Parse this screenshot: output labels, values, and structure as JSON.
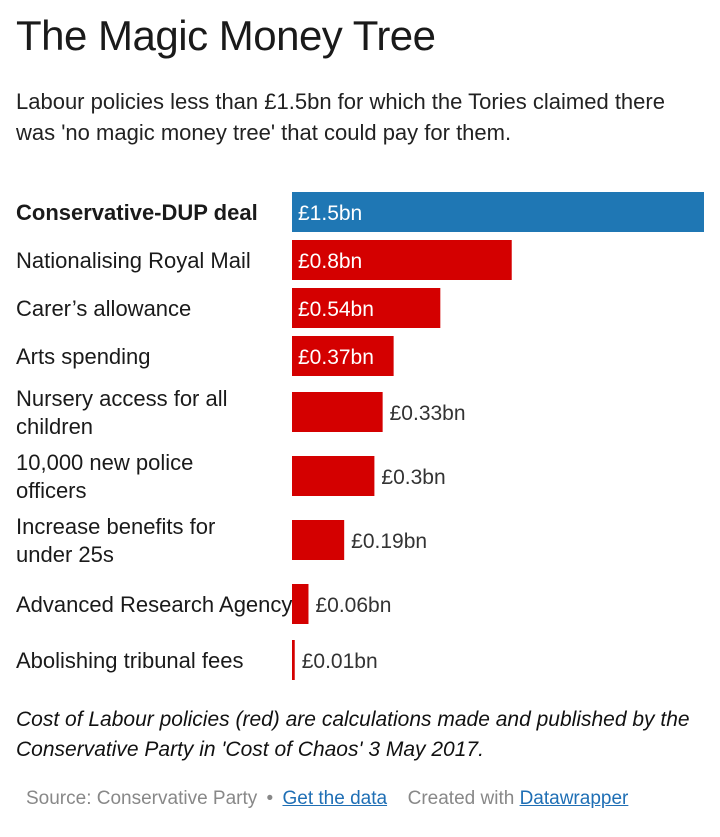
{
  "header": {
    "title": "The Magic Money Tree",
    "subtitle": "Labour policies less than £1.5bn for which the Tories claimed there was 'no magic money tree' that could pay for them."
  },
  "chart_data": {
    "type": "bar",
    "orientation": "horizontal",
    "title": "The Magic Money Tree",
    "categories": [
      "Conservative-DUP deal",
      "Nationalising Royal Mail",
      "Carer’s allowance",
      "Arts spending",
      "Nursery access for all children",
      "10,000 new police officers",
      "Increase benefits for under 25s",
      "Advanced Research Agency",
      "Abolishing tribunal fees"
    ],
    "values": [
      1.5,
      0.8,
      0.54,
      0.37,
      0.33,
      0.3,
      0.19,
      0.06,
      0.01
    ],
    "value_labels": [
      "£1.5bn",
      "£0.8bn",
      "£0.54bn",
      "£0.37bn",
      "£0.33bn",
      "£0.3bn",
      "£0.19bn",
      "£0.06bn",
      "£0.01bn"
    ],
    "highlight": [
      "Conservative-DUP deal"
    ],
    "colors": {
      "highlight": "#1f77b4",
      "default": "#d40000"
    },
    "xlim": [
      0,
      1.5
    ],
    "grid": false,
    "legend": "none"
  },
  "notes": "Cost of Labour policies (red) are calculations made and published by the Conservative Party in 'Cost of Chaos' 3 May 2017.",
  "footer": {
    "source": "Source: Conservative Party",
    "separator": "•",
    "get_data": "Get the data",
    "created_with": "Created with",
    "datawrapper": "Datawrapper"
  }
}
